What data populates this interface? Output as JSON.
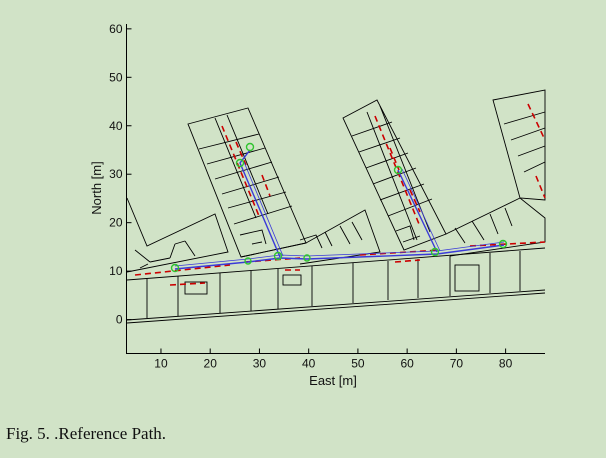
{
  "figure": {
    "x_axis": {
      "label": "East [m]",
      "ticks": [
        "10",
        "20",
        "30",
        "40",
        "50",
        "60",
        "70",
        "80"
      ],
      "range": [
        3,
        88
      ]
    },
    "y_axis": {
      "label": "North [m]",
      "ticks": [
        "0",
        "10",
        "20",
        "30",
        "40",
        "50",
        "60"
      ],
      "range": [
        -7,
        61
      ]
    },
    "colors": {
      "background": "#d1e3c7",
      "walls": "#000000",
      "doors": "#cc0000",
      "path_blue": "#3a3ad8",
      "path_green": "#2fc42f"
    },
    "reference_path": {
      "waypoints_xy_m": [
        [
          13.5,
          10.5
        ],
        [
          28,
          11.8
        ],
        [
          34.5,
          12.7
        ],
        [
          40,
          12.5
        ],
        [
          66.5,
          13.5
        ],
        [
          80,
          15
        ],
        [
          34.5,
          12.7
        ],
        [
          27,
          31.5
        ],
        [
          26.5,
          35.5
        ],
        [
          66.5,
          13.5
        ],
        [
          58.5,
          30.5
        ]
      ]
    }
  },
  "caption": "Fig. 5.   .Reference Path."
}
